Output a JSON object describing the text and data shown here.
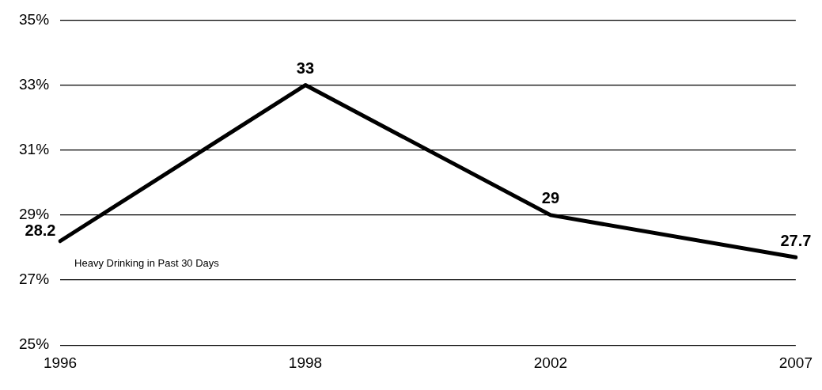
{
  "chart_data": {
    "type": "line",
    "categories": [
      "1996",
      "1998",
      "2002",
      "2007"
    ],
    "series": [
      {
        "color": "#000000",
        "values": [
          28.2,
          33,
          29,
          27.7
        ]
      }
    ],
    "ylim": [
      25,
      35
    ],
    "yticks": [
      {
        "value": 25,
        "label": "25%"
      },
      {
        "value": 27,
        "label": "27%"
      },
      {
        "value": 29,
        "label": "29%"
      },
      {
        "value": 31,
        "label": "31%"
      },
      {
        "value": 33,
        "label": "33%"
      },
      {
        "value": 35,
        "label": "35%"
      }
    ],
    "grid": "y",
    "legend": false,
    "marker": "none",
    "line_style": "solid",
    "data_labels": true,
    "annotations": [
      "Heavy Drinking in Past 30 Days"
    ]
  }
}
